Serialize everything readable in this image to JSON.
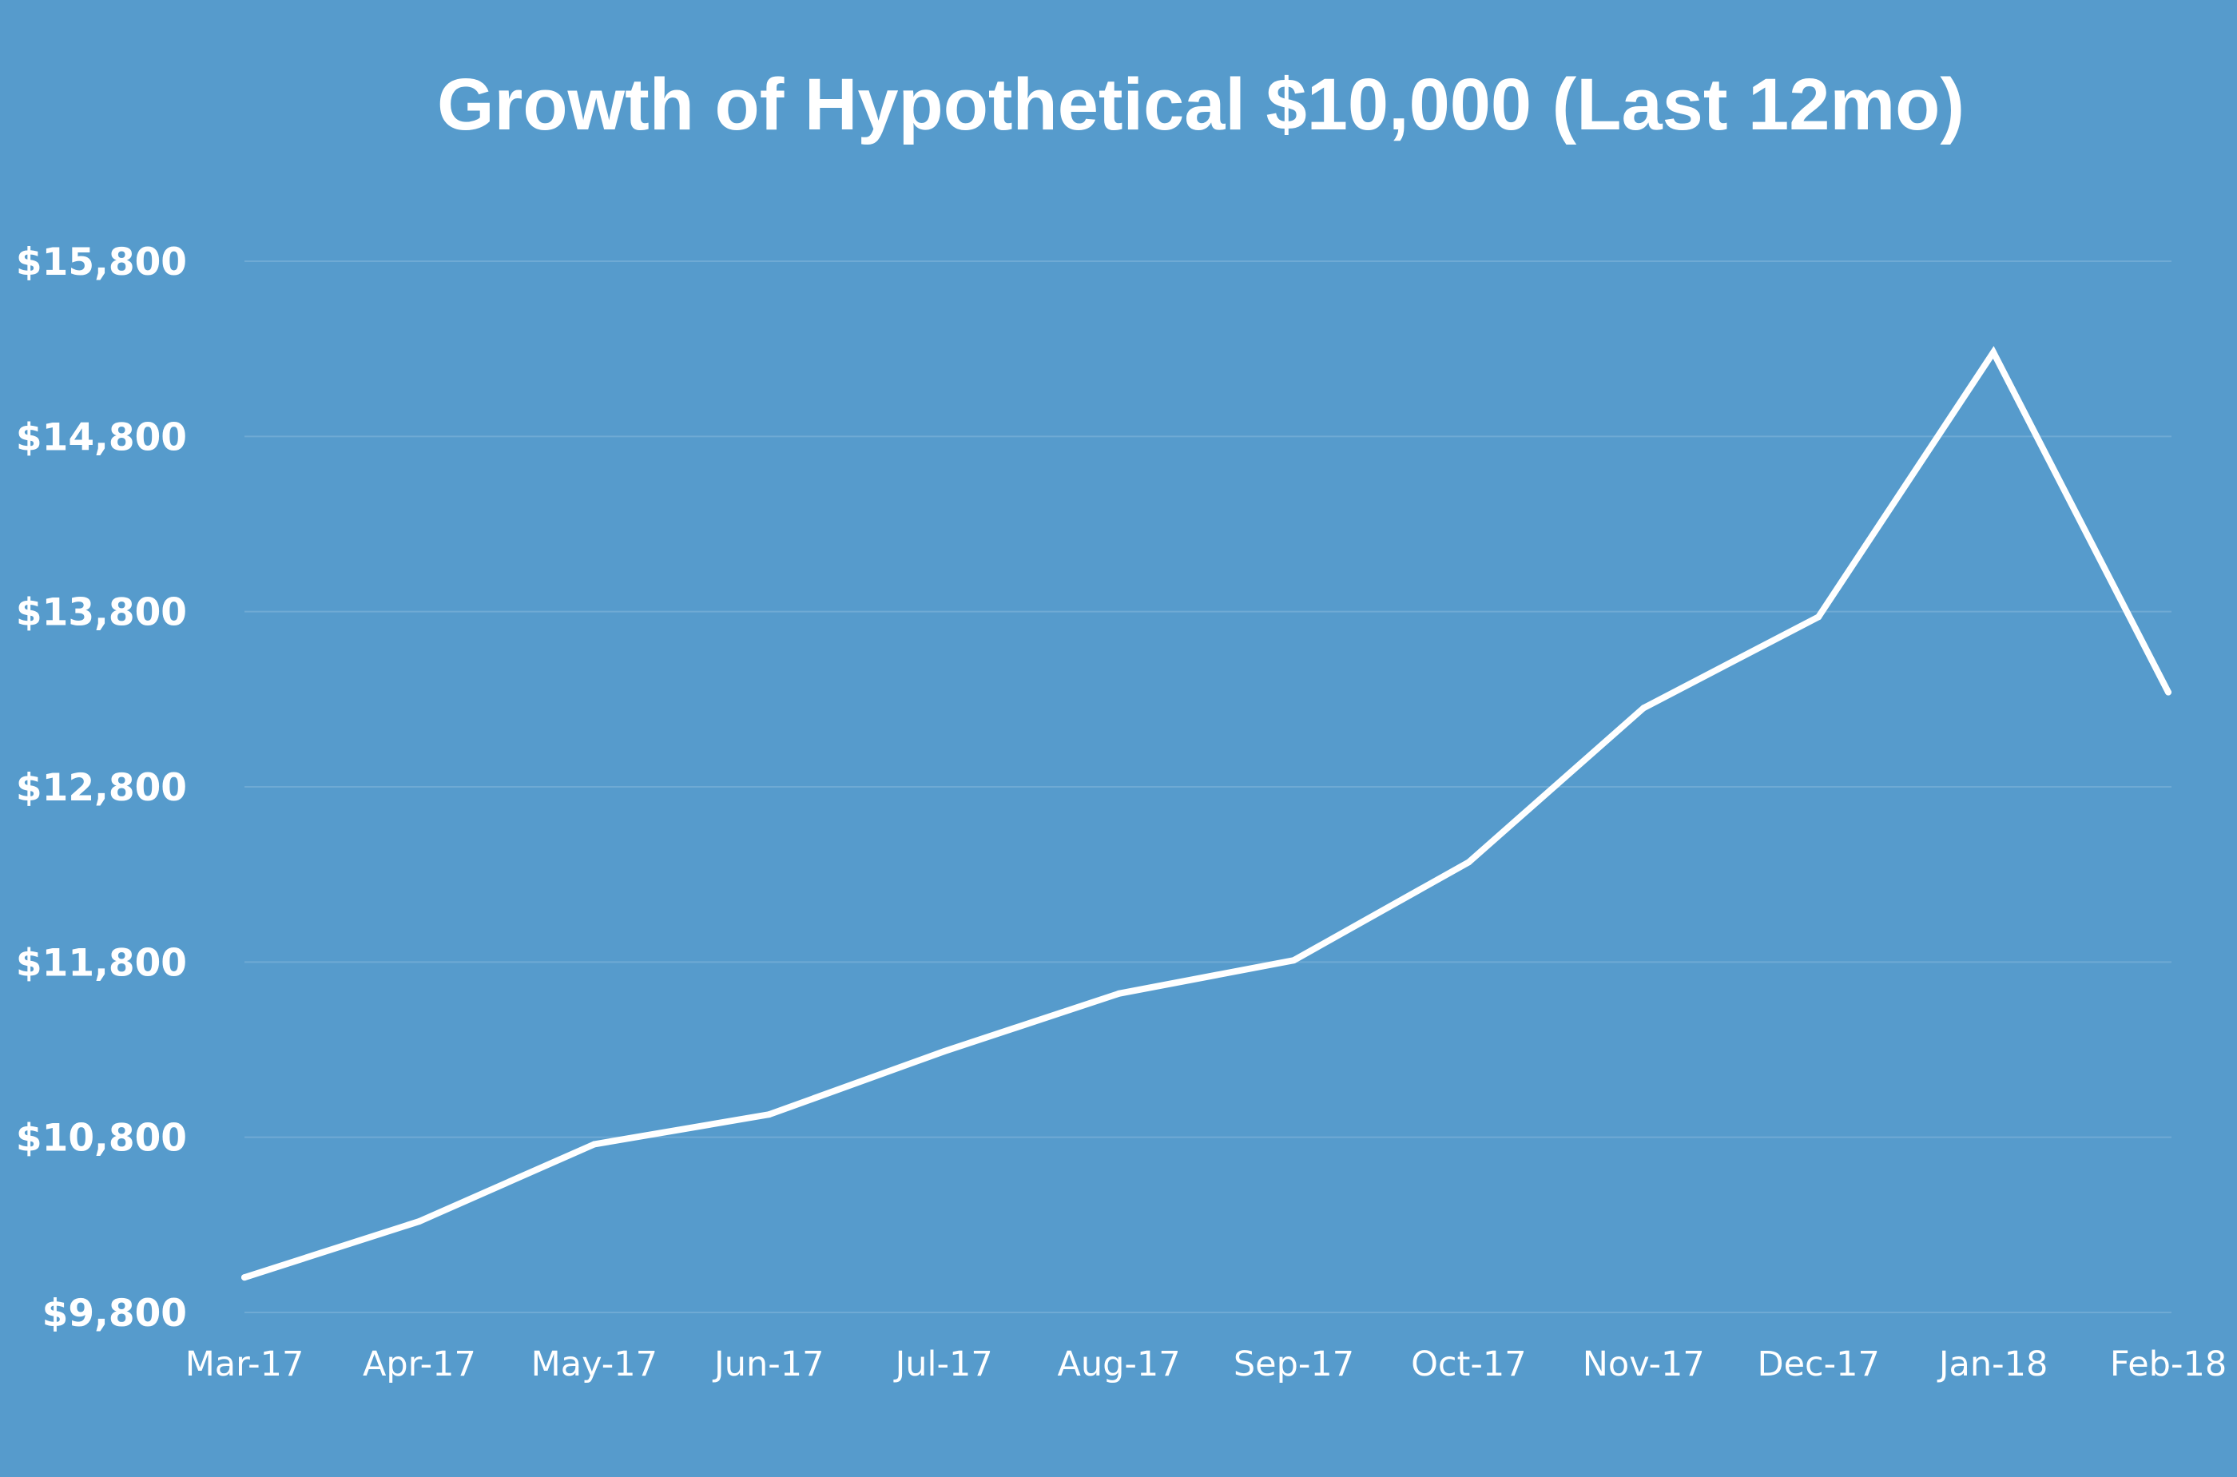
{
  "chart_data": {
    "type": "line",
    "title": "Growth of Hypothetical $10,000 (Last 12mo)",
    "xlabel": "",
    "ylabel": "",
    "categories": [
      "Mar-17",
      "Apr-17",
      "May-17",
      "Jun-17",
      "Jul-17",
      "Aug-17",
      "Sep-17",
      "Oct-17",
      "Nov-17",
      "Dec-17",
      "Jan-18",
      "Feb-18"
    ],
    "series": [
      {
        "values": [
          10000,
          10320,
          10760,
          10930,
          11290,
          11620,
          11810,
          12370,
          13250,
          13770,
          15280,
          13340
        ]
      }
    ],
    "ylim": [
      9800,
      15800
    ],
    "yticks": [
      9800,
      10800,
      11800,
      12800,
      13800,
      14800,
      15800
    ],
    "ytick_labels": [
      "$9,800",
      "$10,800",
      "$11,800",
      "$12,800",
      "$13,800",
      "$14,800",
      "$15,800"
    ],
    "grid": true,
    "legend": "none",
    "colors": {
      "background": "#569BCC",
      "line": "#FFFFFF",
      "grid": "#6FAAD4",
      "text": "#FFFFFF"
    }
  }
}
